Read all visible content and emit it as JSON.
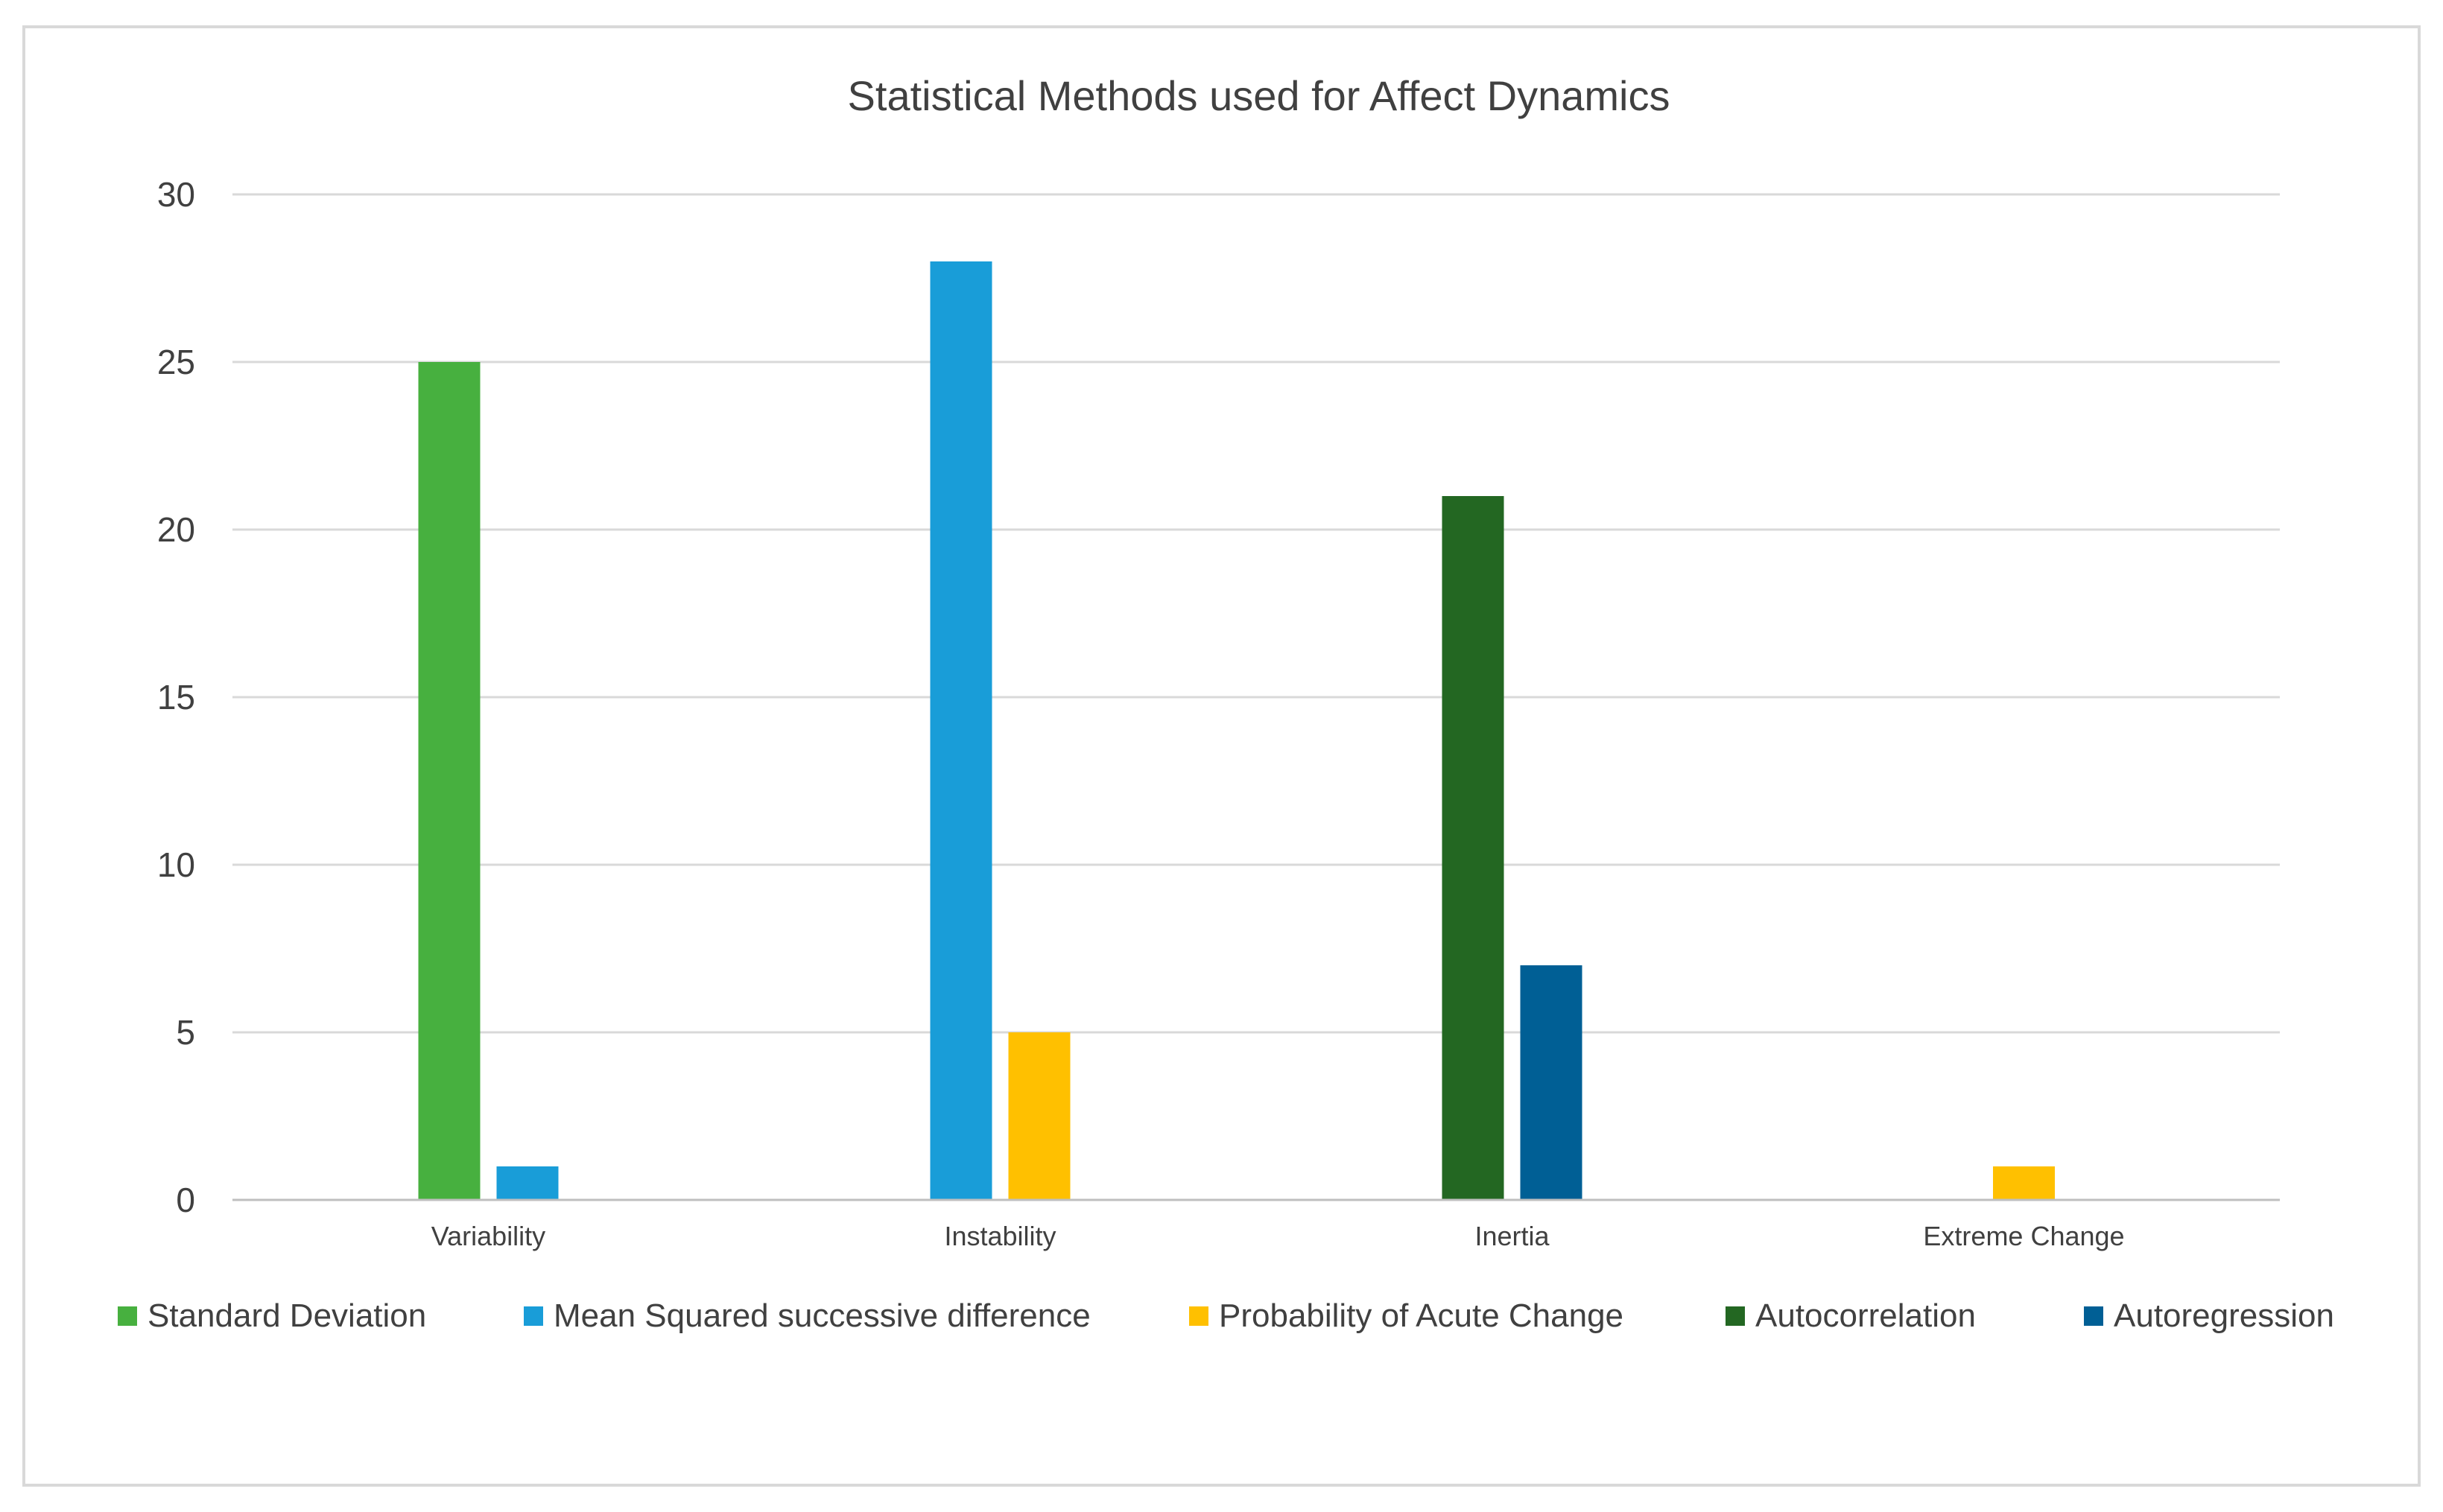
{
  "chart_data": {
    "type": "bar",
    "title": "Statistical Methods used for Affect Dynamics",
    "xlabel": "",
    "ylabel": "",
    "categories": [
      "Variability",
      "Instability",
      "Inertia",
      "Extreme Change"
    ],
    "ylim": [
      0,
      30
    ],
    "yticks": [
      0,
      5,
      10,
      15,
      20,
      25,
      30
    ],
    "grid": true,
    "legend_position": "bottom",
    "series": [
      {
        "name": "Standard Deviation",
        "color": "#47b03f",
        "values": [
          25,
          null,
          null,
          null
        ]
      },
      {
        "name": "Mean Squared successive difference",
        "color": "#199dd8",
        "values": [
          1,
          28,
          null,
          null
        ]
      },
      {
        "name": "Probability of Acute Change",
        "color": "#ffc000",
        "values": [
          null,
          5,
          null,
          1
        ]
      },
      {
        "name": "Autocorrelation",
        "color": "#236722",
        "values": [
          null,
          null,
          21,
          null
        ]
      },
      {
        "name": "Autoregression",
        "color": "#005f95",
        "values": [
          null,
          null,
          7,
          null
        ]
      }
    ]
  },
  "colors": {
    "gridline": "#d9d9d9",
    "axis": "#bfbfbf",
    "text": "#404040"
  }
}
